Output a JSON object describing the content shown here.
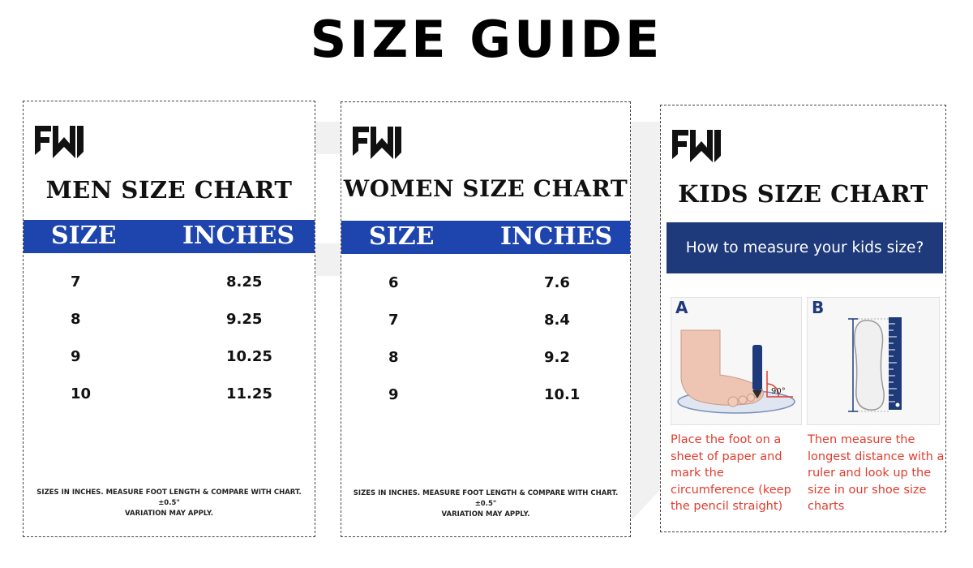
{
  "page": {
    "title": "SIZE GUIDE"
  },
  "brand": {
    "logo_icon": "ew-logo-icon",
    "accent": "#1e44ad",
    "banner": "#1f3a7a",
    "instruction_color": "#e03c2e"
  },
  "men": {
    "title": "MEN SIZE CHART",
    "headers": {
      "size": "SIZE",
      "inches": "INCHES"
    },
    "rows": [
      {
        "size": "7",
        "inches": "8.25"
      },
      {
        "size": "8",
        "inches": "9.25"
      },
      {
        "size": "9",
        "inches": "10.25"
      },
      {
        "size": "10",
        "inches": "11.25"
      }
    ],
    "note_line1": "SIZES IN INCHES. MEASURE FOOT LENGTH & COMPARE WITH CHART. ±0.5\"",
    "note_line2": "VARIATION MAY APPLY."
  },
  "women": {
    "title": "WOMEN SIZE CHART",
    "headers": {
      "size": "SIZE",
      "inches": "INCHES"
    },
    "rows": [
      {
        "size": "6",
        "inches": "7.6"
      },
      {
        "size": "7",
        "inches": "8.4"
      },
      {
        "size": "8",
        "inches": "9.2"
      },
      {
        "size": "9",
        "inches": "10.1"
      }
    ],
    "note_line1": "SIZES IN INCHES. MEASURE FOOT LENGTH & COMPARE WITH CHART. ±0.5\"",
    "note_line2": "VARIATION MAY APPLY."
  },
  "kids": {
    "title": "KIDS SIZE CHART",
    "banner": "How to measure your kids size?",
    "panel_a": {
      "letter": "A",
      "angle_label": "90°",
      "icon": "foot-on-paper-icon"
    },
    "panel_b": {
      "letter": "B",
      "icon": "footprint-ruler-icon"
    },
    "instruction_a": "Place the foot on a sheet of paper and mark the circumference (keep the pencil straight)",
    "instruction_b": "Then measure the longest distance with a ruler and look up the size in our shoe size charts"
  }
}
